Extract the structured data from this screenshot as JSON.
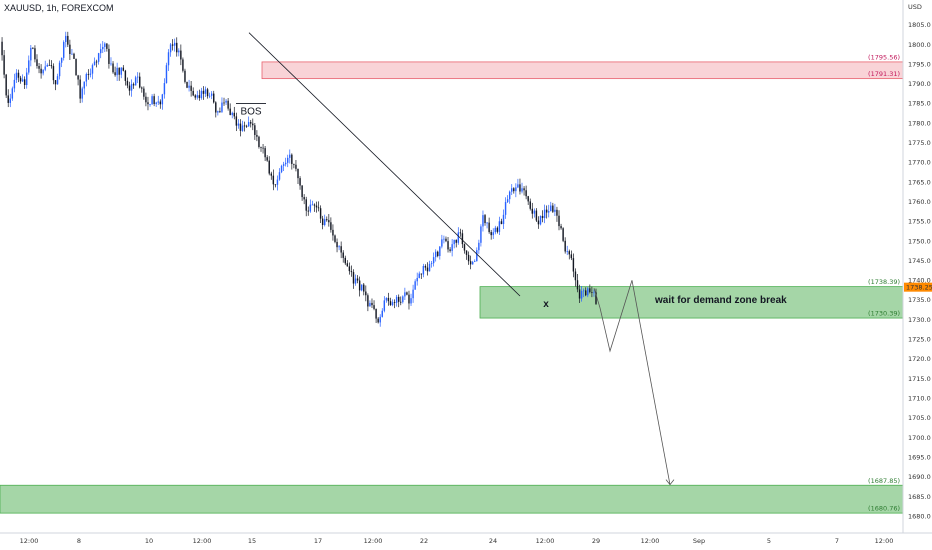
{
  "header": {
    "title": "XAUUSD, 1h, FOREXCOM"
  },
  "colors": {
    "bull": "#2962ff",
    "bear": "#131722",
    "supply_fill": "#f9d3d7",
    "supply_border": "#e8616f",
    "demand_fill": "#a5d6a7",
    "demand_border": "#4caf50",
    "price_tag": "#ff8a00"
  },
  "chart_data": {
    "type": "candlestick",
    "currency": "USD",
    "y_ticks": [
      1680,
      1685,
      1690,
      1695,
      1700,
      1705,
      1710,
      1715,
      1720,
      1725,
      1730,
      1735,
      1740,
      1745,
      1750,
      1755,
      1760,
      1765,
      1770,
      1775,
      1780,
      1785,
      1790,
      1795,
      1800,
      1805
    ],
    "ylim": [
      1678.5,
      1807.5
    ],
    "x_ticks": [
      "12:00",
      "8",
      "10",
      "12:00",
      "15",
      "17",
      "12:00",
      "22",
      "24",
      "12:00",
      "29",
      "12:00",
      "Sep",
      "5",
      "7",
      "12:00"
    ],
    "current_price": "1738.25",
    "zones": [
      {
        "kind": "supply",
        "top": 1795.56,
        "bottom": 1791.31,
        "top_label": "(1795.56)",
        "bottom_label": "(1791.31)"
      },
      {
        "kind": "demand",
        "top": 1738.39,
        "bottom": 1730.39,
        "top_label": "(1738.39)",
        "bottom_label": "(1730.39)"
      },
      {
        "kind": "demand",
        "top": 1687.85,
        "bottom": 1680.76,
        "top_label": "(1687.85)",
        "bottom_label": "(1680.76)"
      }
    ],
    "path_keypoints": [
      1802,
      1784,
      1793,
      1790,
      1800,
      1792,
      1796,
      1790,
      1802,
      1797,
      1787,
      1793,
      1795,
      1801,
      1792,
      1794,
      1788,
      1791,
      1786,
      1786,
      1785,
      1800,
      1799,
      1790,
      1787,
      1787,
      1788,
      1782,
      1786,
      1781,
      1778,
      1782,
      1775,
      1771,
      1764,
      1769,
      1772,
      1766,
      1758,
      1760,
      1755,
      1754,
      1748,
      1744,
      1740,
      1738,
      1733,
      1730,
      1735,
      1734,
      1736,
      1735,
      1742,
      1743,
      1746,
      1750,
      1748,
      1752,
      1746,
      1744,
      1756,
      1751,
      1754,
      1760,
      1765,
      1763,
      1758,
      1755,
      1758,
      1758,
      1749,
      1745,
      1736,
      1738,
      1735
    ],
    "projection": [
      1738,
      1733,
      1722,
      1740,
      1688
    ],
    "annotations": {
      "bos": "BOS",
      "x_mark": "x",
      "note": "wait for demand zone break"
    }
  }
}
